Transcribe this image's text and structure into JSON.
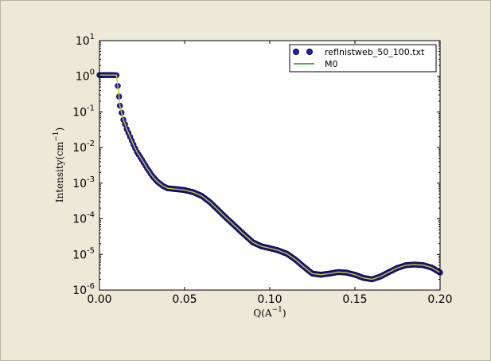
{
  "chart_data": {
    "type": "scatter",
    "xlabel": "Q(A",
    "xlabel_exp": "−1",
    "xlabel_close": ")",
    "ylabel": "Intensity(cm",
    "ylabel_exp": "−1",
    "ylabel_close": ")",
    "xlim": [
      0.0,
      0.2
    ],
    "ylim": [
      1e-06,
      10
    ],
    "yscale": "log",
    "grid": false,
    "legend_position": "top-right",
    "x_ticks": [
      "0.00",
      "0.05",
      "0.10",
      "0.15",
      "0.20"
    ],
    "y_ticks": [
      {
        "base": "10",
        "exp": "1",
        "value": 10
      },
      {
        "base": "10",
        "exp": "0",
        "value": 1
      },
      {
        "base": "10",
        "exp": "-1",
        "value": 0.1
      },
      {
        "base": "10",
        "exp": "-2",
        "value": 0.01
      },
      {
        "base": "10",
        "exp": "-3",
        "value": 0.001
      },
      {
        "base": "10",
        "exp": "-4",
        "value": 0.0001
      },
      {
        "base": "10",
        "exp": "-5",
        "value": 1e-05
      },
      {
        "base": "10",
        "exp": "-6",
        "value": 1e-06
      }
    ],
    "series": [
      {
        "name": "reflnistweb_50_100.txt",
        "style": "markers",
        "color": "#1f1fb4",
        "edge_color": "#0a0a4a",
        "points": [
          [
            0.0,
            1.08
          ],
          [
            0.002,
            1.08
          ],
          [
            0.004,
            1.08
          ],
          [
            0.006,
            1.08
          ],
          [
            0.008,
            1.08
          ],
          [
            0.01,
            1.07
          ],
          [
            0.0115,
            0.27
          ],
          [
            0.012,
            0.15
          ],
          [
            0.013,
            0.095
          ],
          [
            0.014,
            0.06
          ],
          [
            0.015,
            0.045
          ],
          [
            0.016,
            0.033
          ],
          [
            0.018,
            0.02
          ],
          [
            0.02,
            0.012
          ],
          [
            0.022,
            0.0075
          ],
          [
            0.025,
            0.0045
          ],
          [
            0.028,
            0.0026
          ],
          [
            0.031,
            0.0016
          ],
          [
            0.034,
            0.0011
          ],
          [
            0.037,
            0.00085
          ],
          [
            0.04,
            0.00072
          ],
          [
            0.045,
            0.00068
          ],
          [
            0.05,
            0.00064
          ],
          [
            0.055,
            0.00056
          ],
          [
            0.06,
            0.00044
          ],
          [
            0.065,
            0.00029
          ],
          [
            0.07,
            0.00017
          ],
          [
            0.075,
            0.0001
          ],
          [
            0.08,
            6e-05
          ],
          [
            0.085,
            3.6e-05
          ],
          [
            0.09,
            2.2e-05
          ],
          [
            0.095,
            1.7e-05
          ],
          [
            0.1,
            1.5e-05
          ],
          [
            0.105,
            1.3e-05
          ],
          [
            0.11,
            1.05e-05
          ],
          [
            0.115,
            7.2e-06
          ],
          [
            0.12,
            4.5e-06
          ],
          [
            0.125,
            2.9e-06
          ],
          [
            0.13,
            2.7e-06
          ],
          [
            0.135,
            2.9e-06
          ],
          [
            0.14,
            3.2e-06
          ],
          [
            0.145,
            3.1e-06
          ],
          [
            0.15,
            2.7e-06
          ],
          [
            0.155,
            2.2e-06
          ],
          [
            0.16,
            2e-06
          ],
          [
            0.165,
            2.4e-06
          ],
          [
            0.17,
            3.2e-06
          ],
          [
            0.175,
            4.2e-06
          ],
          [
            0.18,
            5e-06
          ],
          [
            0.185,
            5.2e-06
          ],
          [
            0.19,
            5e-06
          ],
          [
            0.195,
            4.3e-06
          ],
          [
            0.2,
            3.1e-06
          ]
        ]
      },
      {
        "name": "M0",
        "style": "line",
        "color": "#2a8a2a",
        "fit_color": "#c9c91e"
      }
    ]
  }
}
